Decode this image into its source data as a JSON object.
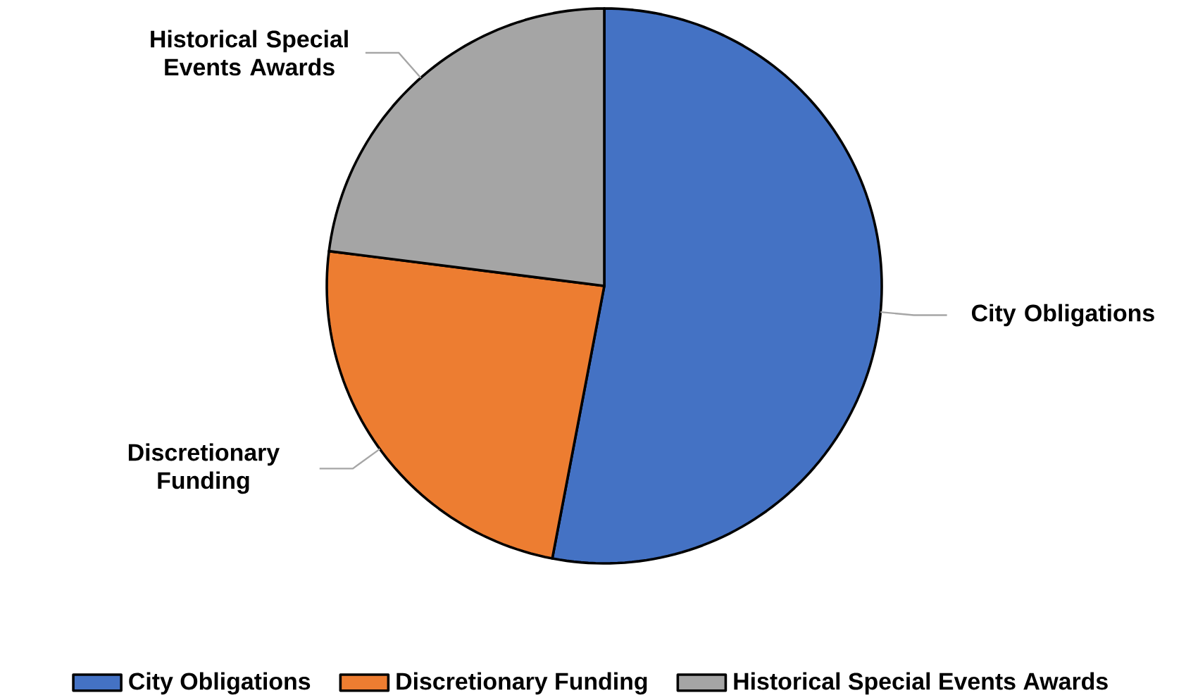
{
  "chart_data": {
    "type": "pie",
    "categories": [
      "City Obligations",
      "Discretionary Funding",
      "Historical Special Events Awards"
    ],
    "values": [
      53,
      24,
      23
    ],
    "colors": [
      "#4472c4",
      "#ed7d31",
      "#a5a5a5"
    ],
    "legend": "bottom"
  }
}
